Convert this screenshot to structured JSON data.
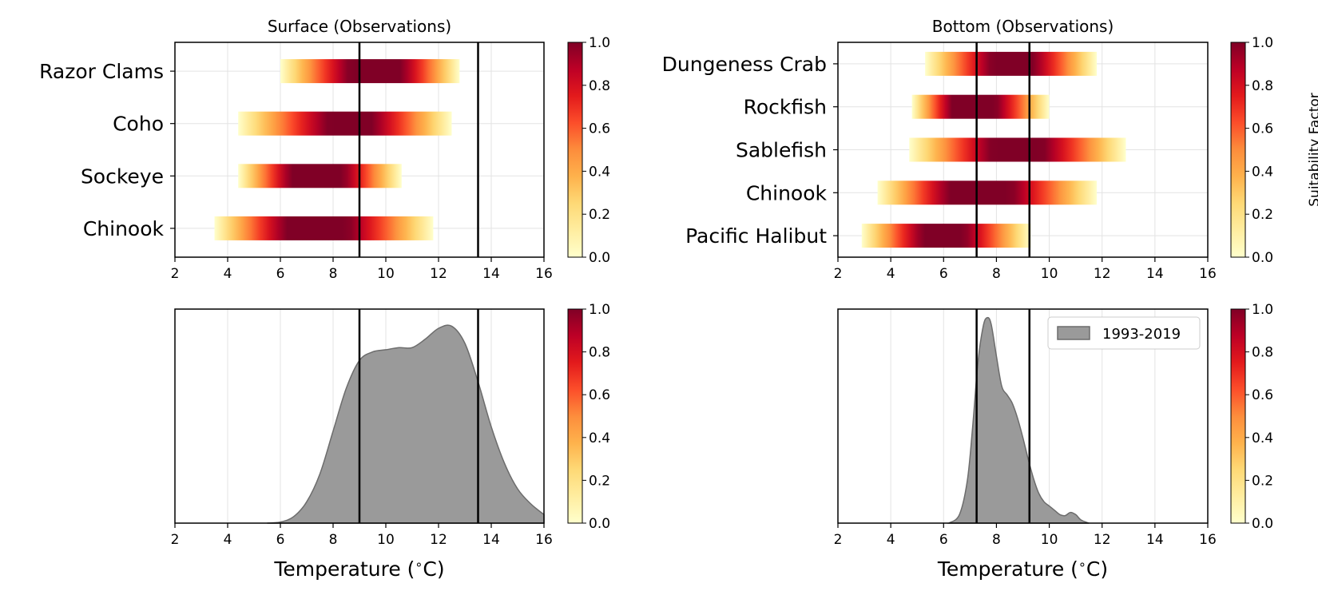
{
  "colormap": {
    "name": "YlOrRd",
    "stops": [
      "#ffffcc",
      "#ffeda0",
      "#fed976",
      "#feb24c",
      "#fd8d3c",
      "#fc4e2a",
      "#e31a1c",
      "#bd0026",
      "#800026"
    ],
    "label": "Suitability Factor",
    "ticks": [
      "0.0",
      "0.2",
      "0.4",
      "0.6",
      "0.8",
      "1.0"
    ]
  },
  "chart_data": [
    {
      "id": "surface-observations",
      "type": "heatmap",
      "title": "Surface (Observations)",
      "xlabel": "",
      "xlim": [
        2,
        16
      ],
      "xticks": [
        2,
        4,
        6,
        8,
        10,
        12,
        14,
        16
      ],
      "grid": true,
      "vlines": [
        9.0,
        13.5
      ],
      "categories": [
        "Razor Clams",
        "Coho",
        "Sockeye",
        "Chinook"
      ],
      "series": [
        {
          "category": "Razor Clams",
          "range": [
            6.0,
            12.8
          ],
          "peak": [
            8.6,
            10.6
          ]
        },
        {
          "category": "Coho",
          "range": [
            4.4,
            12.5
          ],
          "peak": [
            7.8,
            9.5
          ]
        },
        {
          "category": "Sockeye",
          "range": [
            4.4,
            10.6
          ],
          "peak": [
            6.4,
            8.4
          ]
        },
        {
          "category": "Chinook",
          "range": [
            3.5,
            11.8
          ],
          "peak": [
            6.2,
            8.6
          ]
        }
      ],
      "colorbar": {
        "min": 0.0,
        "max": 1.0
      }
    },
    {
      "id": "bottom-observations",
      "type": "heatmap",
      "title": "Bottom (Observations)",
      "xlabel": "",
      "xlim": [
        2,
        16
      ],
      "xticks": [
        2,
        4,
        6,
        8,
        10,
        12,
        14,
        16
      ],
      "grid": true,
      "vlines": [
        7.25,
        9.25
      ],
      "categories": [
        "Dungeness Crab",
        "Rockfish",
        "Sablefish",
        "Chinook",
        "Pacific Halibut"
      ],
      "series": [
        {
          "category": "Dungeness Crab",
          "range": [
            5.3,
            11.8
          ],
          "peak": [
            7.8,
            9.4
          ]
        },
        {
          "category": "Rockfish",
          "range": [
            4.8,
            10.0
          ],
          "peak": [
            6.3,
            8.0
          ]
        },
        {
          "category": "Sablefish",
          "range": [
            4.7,
            12.9
          ],
          "peak": [
            7.8,
            9.8
          ]
        },
        {
          "category": "Chinook",
          "range": [
            3.5,
            11.8
          ],
          "peak": [
            6.2,
            8.6
          ]
        },
        {
          "category": "Pacific Halibut",
          "range": [
            2.9,
            9.3
          ],
          "peak": [
            5.2,
            6.8
          ]
        }
      ],
      "colorbar": {
        "min": 0.0,
        "max": 1.0
      }
    },
    {
      "id": "surface-distribution",
      "type": "area",
      "title": "",
      "xlabel": "Temperature ($^\\circ$C)",
      "xlim": [
        2,
        16
      ],
      "xticks": [
        2,
        4,
        6,
        8,
        10,
        12,
        14,
        16
      ],
      "grid": true,
      "vlines": [
        9.0,
        13.5
      ],
      "x": [
        5.5,
        6.0,
        6.5,
        7.0,
        7.5,
        8.0,
        8.5,
        9.0,
        9.5,
        10.0,
        10.5,
        11.0,
        11.5,
        12.0,
        12.5,
        13.0,
        13.5,
        14.0,
        14.5,
        15.0,
        15.5,
        16.0
      ],
      "y": [
        0.0,
        0.005,
        0.03,
        0.1,
        0.23,
        0.43,
        0.63,
        0.76,
        0.8,
        0.81,
        0.82,
        0.82,
        0.86,
        0.91,
        0.92,
        0.84,
        0.66,
        0.45,
        0.28,
        0.16,
        0.09,
        0.04
      ],
      "ylim": [
        0,
        1.0
      ],
      "colorbar": {
        "min": 0.0,
        "max": 1.0
      }
    },
    {
      "id": "bottom-distribution",
      "type": "area",
      "title": "",
      "xlabel": "Temperature ($^\\circ$C)",
      "xlim": [
        2,
        16
      ],
      "xticks": [
        2,
        4,
        6,
        8,
        10,
        12,
        14,
        16
      ],
      "grid": true,
      "vlines": [
        7.25,
        9.25
      ],
      "legend": {
        "label": "1993-2019",
        "placement": "upper right"
      },
      "x": [
        6.2,
        6.6,
        6.9,
        7.1,
        7.3,
        7.5,
        7.65,
        7.8,
        8.0,
        8.2,
        8.4,
        8.6,
        8.8,
        9.0,
        9.2,
        9.4,
        9.6,
        9.8,
        10.0,
        10.2,
        10.4,
        10.6,
        10.8,
        11.0,
        11.2,
        11.5
      ],
      "y": [
        0.0,
        0.04,
        0.2,
        0.45,
        0.75,
        0.92,
        0.96,
        0.93,
        0.78,
        0.64,
        0.6,
        0.56,
        0.49,
        0.4,
        0.3,
        0.21,
        0.14,
        0.1,
        0.08,
        0.06,
        0.04,
        0.035,
        0.05,
        0.04,
        0.015,
        0.0
      ],
      "ylim": [
        0,
        1.0
      ],
      "colorbar": {
        "min": 0.0,
        "max": 1.0
      }
    }
  ]
}
